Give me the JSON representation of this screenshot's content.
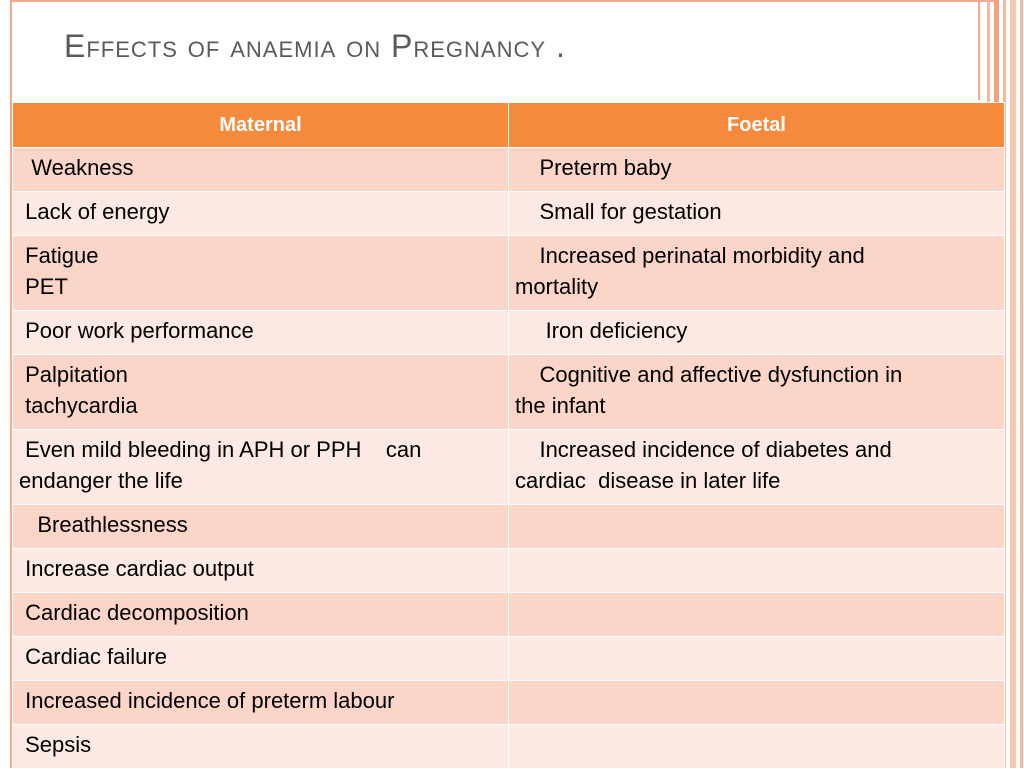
{
  "slide": {
    "title_main": "Effects of anaemia on Pregnancy",
    "title_suffix": " ."
  },
  "table": {
    "headers": [
      "Maternal",
      "Foetal"
    ],
    "rows": [
      [
        "  Weakness",
        "    Preterm baby"
      ],
      [
        " Lack of energy",
        "    Small for gestation"
      ],
      [
        " Fatigue\n PET",
        "    Increased perinatal morbidity and\nmortality"
      ],
      [
        " Poor work performance",
        "     Iron deficiency"
      ],
      [
        " Palpitation\n tachycardia",
        "    Cognitive and affective dysfunction in\nthe infant"
      ],
      [
        " Even mild bleeding in APH or PPH    can\nendanger the life",
        "    Increased incidence of diabetes and\ncardiac  disease in later life"
      ],
      [
        "   Breathlessness",
        ""
      ],
      [
        " Increase cardiac output",
        ""
      ],
      [
        " Cardiac decomposition",
        ""
      ],
      [
        " Cardiac failure",
        ""
      ],
      [
        " Increased incidence of preterm labour",
        ""
      ],
      [
        " Sepsis",
        ""
      ]
    ]
  },
  "colors": {
    "header_bg": "#f58a3c",
    "row_odd": "#fbd5c8",
    "row_even": "#fde9e3",
    "frame": "#f4a98a",
    "title_text": "#5a5a5a"
  }
}
